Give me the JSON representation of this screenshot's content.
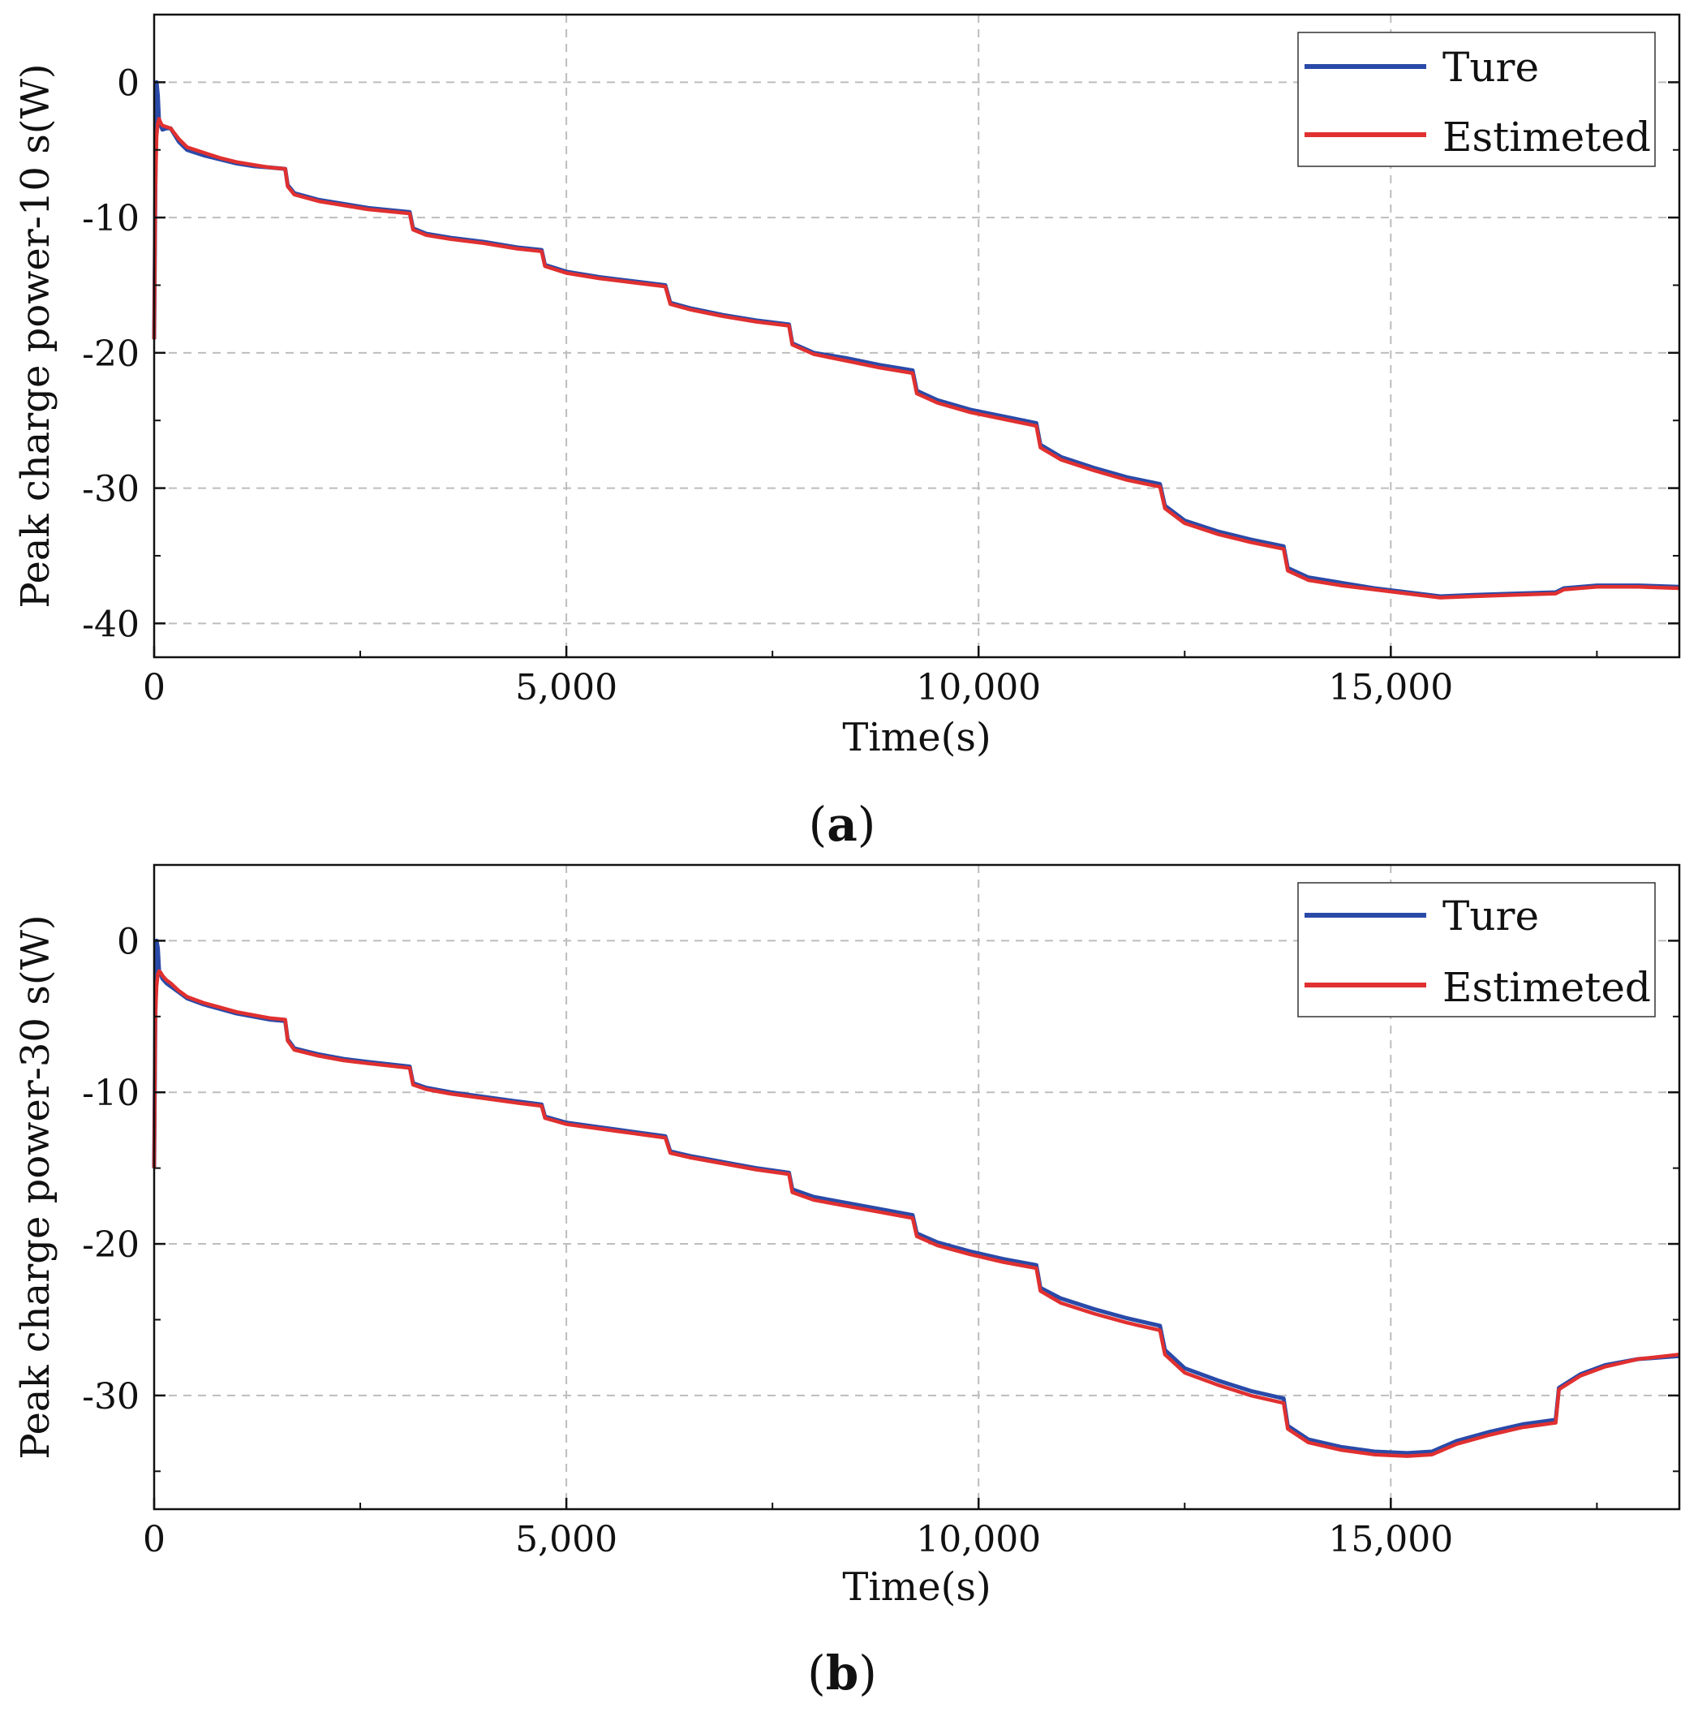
{
  "colors": {
    "true_series": "#2a4aa8",
    "estimated_series": "#e03030",
    "grid": "#bdbdbd",
    "axis": "#111111"
  },
  "chart_data": [
    {
      "type": "line",
      "caption_letter": "a",
      "caption_open": "(",
      "caption_close": ")",
      "xlabel": "Time(s)",
      "ylabel": "Peak charge power-10 s(W)",
      "xlim": [
        0,
        18500
      ],
      "ylim": [
        -42.5,
        5
      ],
      "xticks": [
        0,
        5000,
        10000,
        15000
      ],
      "xtick_labels": [
        "0",
        "5,000",
        "10,000",
        "15,000"
      ],
      "yticks": [
        0,
        -10,
        -20,
        -30,
        -40
      ],
      "ytick_labels": [
        "0",
        "-10",
        "-20",
        "-30",
        "-40"
      ],
      "legend": {
        "position": "top-right",
        "entries": [
          "Ture",
          "Estimeted"
        ]
      },
      "series": [
        {
          "name": "Ture",
          "x": [
            0,
            15,
            30,
            45,
            60,
            80,
            100,
            150,
            200,
            300,
            400,
            600,
            800,
            1000,
            1200,
            1400,
            1590,
            1620,
            1700,
            2000,
            2300,
            2600,
            3100,
            3140,
            3300,
            3600,
            4000,
            4400,
            4700,
            4740,
            5000,
            5400,
            5800,
            6200,
            6260,
            6500,
            6900,
            7300,
            7700,
            7740,
            8000,
            8400,
            8800,
            9200,
            9250,
            9500,
            9900,
            10300,
            10700,
            10750,
            11000,
            11400,
            11800,
            12200,
            12260,
            12500,
            12900,
            13300,
            13700,
            13750,
            14000,
            14400,
            14800,
            15200,
            15600,
            16000,
            16500,
            17000,
            17100,
            17500,
            18000,
            18500
          ],
          "y": [
            -19,
            -8,
            0,
            -1,
            -3,
            -3.2,
            -3.5,
            -3.4,
            -3.4,
            -4.4,
            -5.0,
            -5.4,
            -5.7,
            -6.0,
            -6.2,
            -6.3,
            -6.4,
            -7.6,
            -8.2,
            -8.7,
            -9.0,
            -9.3,
            -9.6,
            -10.8,
            -11.2,
            -11.5,
            -11.8,
            -12.2,
            -12.4,
            -13.5,
            -14.0,
            -14.4,
            -14.7,
            -15.0,
            -16.3,
            -16.7,
            -17.2,
            -17.6,
            -17.9,
            -19.3,
            -20.0,
            -20.4,
            -20.9,
            -21.3,
            -22.8,
            -23.5,
            -24.2,
            -24.7,
            -25.2,
            -26.8,
            -27.7,
            -28.5,
            -29.2,
            -29.7,
            -31.3,
            -32.4,
            -33.2,
            -33.8,
            -34.3,
            -35.9,
            -36.6,
            -37.0,
            -37.4,
            -37.7,
            -38.0,
            -37.9,
            -37.8,
            -37.7,
            -37.4,
            -37.2,
            -37.2,
            -37.3
          ]
        },
        {
          "name": "Estimeted",
          "x": [
            0,
            15,
            30,
            45,
            60,
            80,
            100,
            150,
            200,
            300,
            400,
            600,
            800,
            1000,
            1200,
            1400,
            1590,
            1620,
            1700,
            2000,
            2300,
            2600,
            3100,
            3140,
            3300,
            3600,
            4000,
            4400,
            4700,
            4740,
            5000,
            5400,
            5800,
            6200,
            6260,
            6500,
            6900,
            7300,
            7700,
            7740,
            8000,
            8400,
            8800,
            9200,
            9250,
            9500,
            9900,
            10300,
            10700,
            10750,
            11000,
            11400,
            11800,
            12200,
            12260,
            12500,
            12900,
            13300,
            13700,
            13750,
            14000,
            14400,
            14800,
            15200,
            15600,
            16000,
            16500,
            17000,
            17100,
            17500,
            18000,
            18500
          ],
          "y": [
            -19,
            -8,
            -4,
            -3,
            -2.7,
            -3.0,
            -3.2,
            -3.3,
            -3.4,
            -4.2,
            -4.8,
            -5.2,
            -5.6,
            -5.9,
            -6.1,
            -6.3,
            -6.4,
            -7.7,
            -8.3,
            -8.8,
            -9.1,
            -9.4,
            -9.7,
            -10.9,
            -11.3,
            -11.6,
            -11.9,
            -12.3,
            -12.5,
            -13.6,
            -14.1,
            -14.5,
            -14.8,
            -15.1,
            -16.4,
            -16.8,
            -17.3,
            -17.7,
            -18.0,
            -19.4,
            -20.1,
            -20.6,
            -21.1,
            -21.5,
            -23.0,
            -23.7,
            -24.4,
            -24.9,
            -25.4,
            -27.0,
            -27.9,
            -28.7,
            -29.4,
            -29.9,
            -31.5,
            -32.6,
            -33.4,
            -34.0,
            -34.5,
            -36.1,
            -36.8,
            -37.2,
            -37.5,
            -37.8,
            -38.1,
            -38.0,
            -37.9,
            -37.8,
            -37.5,
            -37.3,
            -37.3,
            -37.4
          ]
        }
      ]
    },
    {
      "type": "line",
      "caption_letter": "b",
      "caption_open": "(",
      "caption_close": ")",
      "xlabel": "Time(s)",
      "ylabel": "Peak charge power-30 s(W)",
      "xlim": [
        0,
        18500
      ],
      "ylim": [
        -37.5,
        5
      ],
      "xticks": [
        0,
        5000,
        10000,
        15000
      ],
      "xtick_labels": [
        "0",
        "5,000",
        "10,000",
        "15,000"
      ],
      "yticks": [
        0,
        -10,
        -20,
        -30
      ],
      "ytick_labels": [
        "0",
        "-10",
        "-20",
        "-30"
      ],
      "legend": {
        "position": "top-right",
        "entries": [
          "Ture",
          "Estimeted"
        ]
      },
      "series": [
        {
          "name": "Ture",
          "x": [
            0,
            15,
            30,
            45,
            60,
            80,
            100,
            150,
            200,
            300,
            400,
            600,
            800,
            1000,
            1200,
            1400,
            1590,
            1620,
            1700,
            2000,
            2300,
            2600,
            3100,
            3140,
            3300,
            3600,
            4000,
            4400,
            4700,
            4740,
            5000,
            5400,
            5800,
            6200,
            6260,
            6500,
            6900,
            7300,
            7700,
            7740,
            8000,
            8400,
            8800,
            9200,
            9250,
            9500,
            9900,
            10300,
            10700,
            10750,
            11000,
            11400,
            11800,
            12200,
            12260,
            12500,
            12900,
            13300,
            13700,
            13750,
            14000,
            14400,
            14800,
            15200,
            15500,
            15800,
            16200,
            16600,
            17000,
            17040,
            17300,
            17600,
            18000,
            18500
          ],
          "y": [
            -15,
            -5,
            0,
            -0.5,
            -2,
            -2.2,
            -2.5,
            -2.8,
            -3.0,
            -3.4,
            -3.8,
            -4.2,
            -4.5,
            -4.8,
            -5.0,
            -5.2,
            -5.3,
            -6.5,
            -7.1,
            -7.5,
            -7.8,
            -8.0,
            -8.3,
            -9.4,
            -9.7,
            -10.0,
            -10.3,
            -10.6,
            -10.8,
            -11.6,
            -12.0,
            -12.3,
            -12.6,
            -12.9,
            -13.9,
            -14.2,
            -14.6,
            -15.0,
            -15.3,
            -16.4,
            -16.9,
            -17.3,
            -17.7,
            -18.1,
            -19.3,
            -19.9,
            -20.5,
            -21.0,
            -21.4,
            -22.9,
            -23.6,
            -24.3,
            -24.9,
            -25.4,
            -27.0,
            -28.2,
            -29.0,
            -29.7,
            -30.2,
            -32.0,
            -32.9,
            -33.4,
            -33.7,
            -33.8,
            -33.7,
            -33.0,
            -32.4,
            -31.9,
            -31.6,
            -29.5,
            -28.6,
            -28.0,
            -27.6,
            -27.4
          ]
        },
        {
          "name": "Estimeted",
          "x": [
            0,
            15,
            30,
            45,
            60,
            80,
            100,
            150,
            200,
            300,
            400,
            600,
            800,
            1000,
            1200,
            1400,
            1590,
            1620,
            1700,
            2000,
            2300,
            2600,
            3100,
            3140,
            3300,
            3600,
            4000,
            4400,
            4700,
            4740,
            5000,
            5400,
            5800,
            6200,
            6260,
            6500,
            6900,
            7300,
            7700,
            7740,
            8000,
            8400,
            8800,
            9200,
            9250,
            9500,
            9900,
            10300,
            10700,
            10750,
            11000,
            11400,
            11800,
            12200,
            12260,
            12500,
            12900,
            13300,
            13700,
            13750,
            14000,
            14400,
            14800,
            15200,
            15500,
            15800,
            16200,
            16600,
            17000,
            17040,
            17300,
            17600,
            18000,
            18500
          ],
          "y": [
            -15,
            -5,
            -3,
            -2.2,
            -2.0,
            -2.1,
            -2.3,
            -2.6,
            -2.8,
            -3.3,
            -3.7,
            -4.1,
            -4.4,
            -4.7,
            -4.9,
            -5.1,
            -5.2,
            -6.6,
            -7.2,
            -7.6,
            -7.9,
            -8.1,
            -8.4,
            -9.5,
            -9.8,
            -10.1,
            -10.4,
            -10.7,
            -10.9,
            -11.7,
            -12.1,
            -12.4,
            -12.7,
            -13.0,
            -14.0,
            -14.3,
            -14.7,
            -15.1,
            -15.4,
            -16.6,
            -17.1,
            -17.5,
            -17.9,
            -18.3,
            -19.5,
            -20.1,
            -20.7,
            -21.2,
            -21.6,
            -23.1,
            -23.9,
            -24.6,
            -25.2,
            -25.7,
            -27.3,
            -28.5,
            -29.3,
            -30.0,
            -30.5,
            -32.2,
            -33.1,
            -33.6,
            -33.9,
            -34.0,
            -33.9,
            -33.2,
            -32.6,
            -32.1,
            -31.8,
            -29.6,
            -28.7,
            -28.1,
            -27.6,
            -27.3
          ]
        }
      ]
    }
  ]
}
